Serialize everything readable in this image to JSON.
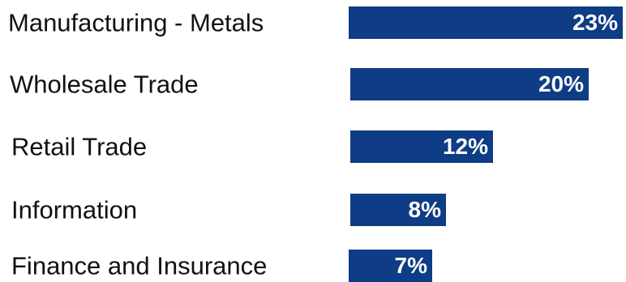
{
  "chart_data": {
    "type": "bar",
    "orientation": "horizontal",
    "categories": [
      "Manufacturing - Metals",
      "Wholesale Trade",
      "Retail Trade",
      "Information",
      "Finance and Insurance"
    ],
    "values": [
      23,
      20,
      12,
      8,
      7
    ],
    "value_labels": [
      "23%",
      "20%",
      "12%",
      "8%",
      "7%"
    ],
    "unit": "%",
    "title": "",
    "xlabel": "",
    "ylabel": "",
    "xlim": [
      0,
      23
    ],
    "grid": false,
    "legend": "none",
    "bar_color": "#0e3d85",
    "value_label_color": "#ffffff"
  }
}
